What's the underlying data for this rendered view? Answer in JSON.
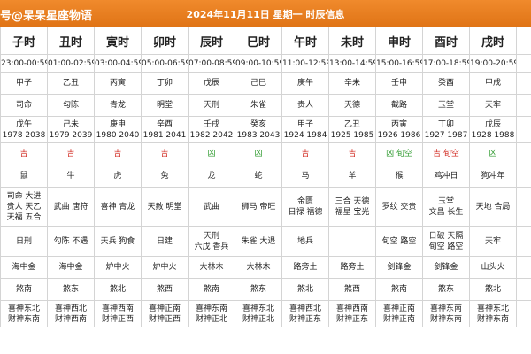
{
  "header": {
    "left": "号@呆呆星座物语",
    "title": "2024年11月11日 星期一 时辰信息"
  },
  "table": {
    "columns": [
      "子时",
      "丑时",
      "寅时",
      "卯时",
      "辰时",
      "巳时",
      "午时",
      "未时",
      "申时",
      "酉时",
      "戌时"
    ],
    "rows": [
      [
        [
          "23:00-00:59"
        ],
        [
          "01:00-02:59"
        ],
        [
          "03:00-04:59"
        ],
        [
          "05:00-06:59"
        ],
        [
          "07:00-08:59"
        ],
        [
          "09:00-10:59"
        ],
        [
          "11:00-12:59"
        ],
        [
          "13:00-14:59"
        ],
        [
          "15:00-16:59"
        ],
        [
          "17:00-18:59"
        ],
        [
          "19:00-20:59"
        ]
      ],
      [
        [
          "甲子"
        ],
        [
          "乙丑"
        ],
        [
          "丙寅"
        ],
        [
          "丁卯"
        ],
        [
          "戊辰"
        ],
        [
          "己巳"
        ],
        [
          "庚午"
        ],
        [
          "辛未"
        ],
        [
          "壬申"
        ],
        [
          "癸酉"
        ],
        [
          "甲戌"
        ]
      ],
      [
        [
          "司命"
        ],
        [
          "勾陈"
        ],
        [
          "青龙"
        ],
        [
          "明堂"
        ],
        [
          "天刑"
        ],
        [
          "朱雀"
        ],
        [
          "贵人"
        ],
        [
          "天德"
        ],
        [
          "截路"
        ],
        [
          "玉堂"
        ],
        [
          "天牢"
        ]
      ],
      [
        [
          "戊午",
          "1978 2038"
        ],
        [
          "己未",
          "1979 2039"
        ],
        [
          "庚申",
          "1980 2040"
        ],
        [
          "辛酉",
          "1981 2041"
        ],
        [
          "壬戌",
          "1982 2042"
        ],
        [
          "癸亥",
          "1983 2043"
        ],
        [
          "甲子",
          "1924 1984"
        ],
        [
          "乙丑",
          "1925 1985"
        ],
        [
          "丙寅",
          "1926 1986"
        ],
        [
          "丁卯",
          "1927 1987"
        ],
        [
          "戊辰",
          "1928 1988"
        ]
      ],
      [
        [
          "吉"
        ],
        [
          "吉"
        ],
        [
          "吉"
        ],
        [
          "吉"
        ],
        [
          "凶"
        ],
        [
          "凶"
        ],
        [
          "吉"
        ],
        [
          "吉"
        ],
        [
          "凶 旬空"
        ],
        [
          "吉 旬空"
        ],
        [
          "凶"
        ]
      ],
      [
        [
          "鼠"
        ],
        [
          "牛"
        ],
        [
          "虎"
        ],
        [
          "兔"
        ],
        [
          "龙"
        ],
        [
          "蛇"
        ],
        [
          "马"
        ],
        [
          "羊"
        ],
        [
          "猴"
        ],
        [
          "鸡冲日"
        ],
        [
          "狗冲年"
        ]
      ],
      [
        [
          "司命 大进",
          "贵人 天乙",
          "天福 五合"
        ],
        [
          "武曲 唐符"
        ],
        [
          "喜神 青龙"
        ],
        [
          "天赦 明堂"
        ],
        [
          "武曲"
        ],
        [
          "狮马 帝旺"
        ],
        [
          "金匮",
          "日禄 福德"
        ],
        [
          "三合 天德",
          "福星 宝光"
        ],
        [
          "罗纹 交贵"
        ],
        [
          "玉堂",
          "文昌 长生"
        ],
        [
          "天地 合局"
        ]
      ],
      [
        [
          "日刑"
        ],
        [
          "勾陈 不遇"
        ],
        [
          "天兵 狗食"
        ],
        [
          "日建"
        ],
        [
          "天刑",
          "六戊 香兵"
        ],
        [
          "朱雀 大退"
        ],
        [
          "地兵"
        ],
        [],
        [
          "旬空 路空"
        ],
        [
          "日破 天隔",
          "旬空 路空"
        ],
        [
          "天牢"
        ]
      ],
      [
        [
          "海中金"
        ],
        [
          "海中金"
        ],
        [
          "炉中火"
        ],
        [
          "炉中火"
        ],
        [
          "大林木"
        ],
        [
          "大林木"
        ],
        [
          "路旁土"
        ],
        [
          "路旁土"
        ],
        [
          "剑锋金"
        ],
        [
          "剑锋金"
        ],
        [
          "山头火"
        ]
      ],
      [
        [
          "煞南"
        ],
        [
          "煞东"
        ],
        [
          "煞北"
        ],
        [
          "煞西"
        ],
        [
          "煞南"
        ],
        [
          "煞东"
        ],
        [
          "煞北"
        ],
        [
          "煞西"
        ],
        [
          "煞南"
        ],
        [
          "煞东"
        ],
        [
          "煞北"
        ]
      ],
      [
        [
          "喜神东北",
          "财神东南"
        ],
        [
          "喜神西北",
          "财神西南"
        ],
        [
          "喜神西南",
          "财神正西"
        ],
        [
          "喜神正南",
          "财神正西"
        ],
        [
          "喜神东南",
          "财神正北"
        ],
        [
          "喜神东北",
          "财神正北"
        ],
        [
          "喜神西北",
          "财神正东"
        ],
        [
          "喜神西南",
          "财神正东"
        ],
        [
          "喜神正南",
          "财神正南"
        ],
        [
          "喜神东南",
          "财神东南"
        ],
        [
          "喜神东北",
          "财神东南"
        ]
      ]
    ],
    "fortune_row": 4,
    "fortune_colors": [
      "#d0261c",
      "#d0261c",
      "#d0261c",
      "#d0261c",
      "#2e9a2e",
      "#2e9a2e",
      "#d0261c",
      "#d0261c",
      "#2e9a2e",
      "#d0261c",
      "#2e9a2e"
    ]
  }
}
